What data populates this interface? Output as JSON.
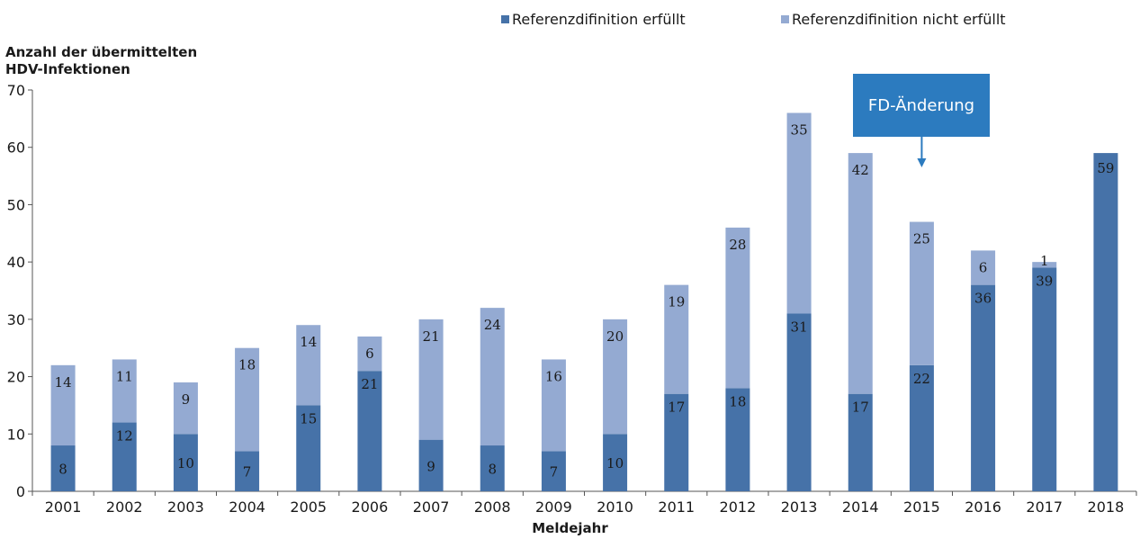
{
  "legend": {
    "items": [
      {
        "label": "Referenzdifinition erfüllt",
        "color": "#4672a8"
      },
      {
        "label": "Referenzdifinition nicht erfüllt",
        "color": "#94aad2"
      }
    ]
  },
  "y_title": {
    "line1": "Anzahl der übermittelten",
    "line2": "HDV-Infektionen"
  },
  "x_title": "Meldejahr",
  "annotation": {
    "label": "FD-Änderung",
    "year": "2015",
    "color": "#2c7bbf"
  },
  "chart_data": {
    "type": "bar",
    "stacked": true,
    "categories": [
      "2001",
      "2002",
      "2003",
      "2004",
      "2005",
      "2006",
      "2007",
      "2008",
      "2009",
      "2010",
      "2011",
      "2012",
      "2013",
      "2014",
      "2015",
      "2016",
      "2017",
      "2018"
    ],
    "series": [
      {
        "name": "Referenzdifinition erfüllt",
        "color": "#4672a8",
        "values": [
          8,
          12,
          10,
          7,
          15,
          21,
          9,
          8,
          7,
          10,
          17,
          18,
          31,
          17,
          22,
          36,
          39,
          59
        ]
      },
      {
        "name": "Referenzdifinition nicht erfüllt",
        "color": "#94aad2",
        "values": [
          14,
          11,
          9,
          18,
          14,
          6,
          21,
          24,
          16,
          20,
          19,
          28,
          35,
          42,
          25,
          6,
          1,
          null
        ]
      }
    ],
    "ylim": [
      0,
      70
    ],
    "yticks": [
      0,
      10,
      20,
      30,
      40,
      50,
      60,
      70
    ],
    "xlabel": "Meldejahr",
    "ylabel": "Anzahl der übermittelten HDV-Infektionen",
    "grid": false,
    "legend_position": "top"
  }
}
